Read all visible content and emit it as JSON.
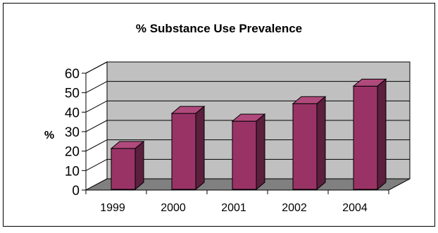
{
  "chart_data": {
    "type": "bar",
    "title": "% Substance Use Prevalence",
    "xlabel": "",
    "ylabel": "%",
    "categories": [
      "1999",
      "2000",
      "2001",
      "2002",
      "2004"
    ],
    "values": [
      21,
      39,
      35,
      44,
      53
    ],
    "ylim": [
      0,
      60
    ],
    "yticks": [
      "0",
      "10",
      "20",
      "30",
      "40",
      "50",
      "60"
    ],
    "grid": true,
    "legend": "none",
    "style": "3d-column",
    "colors": {
      "bar_front": "#993366",
      "bar_top": "#b04a7d",
      "bar_side": "#5c1f3d",
      "plot_back_wall": "#c0c0c0",
      "plot_floor": "#808080",
      "border": "#000000"
    }
  }
}
